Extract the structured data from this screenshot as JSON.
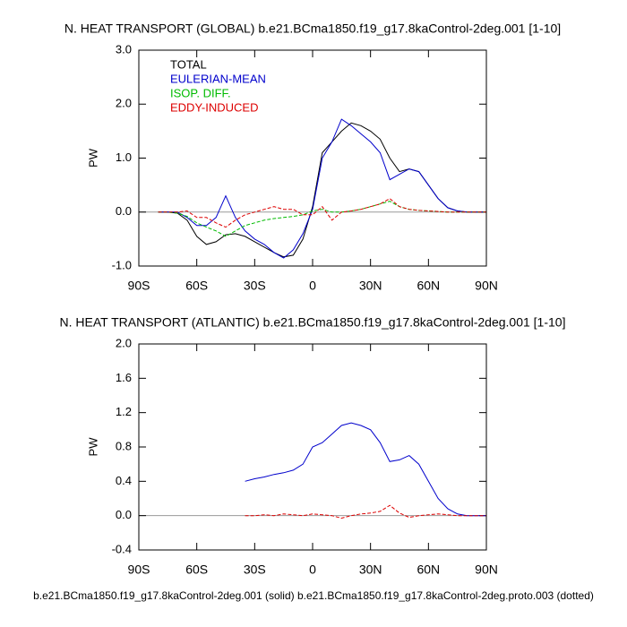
{
  "chart_data": [
    {
      "type": "line",
      "title": "N. HEAT TRANSPORT (GLOBAL) b.e21.BCma1850.f19_g17.8kaControl-2deg.001 [1-10]",
      "ylabel": "PW",
      "x": [
        -80,
        -75,
        -70,
        -65,
        -60,
        -55,
        -50,
        -45,
        -40,
        -35,
        -30,
        -25,
        -20,
        -15,
        -10,
        -5,
        0,
        5,
        10,
        15,
        20,
        25,
        30,
        35,
        40,
        45,
        50,
        55,
        60,
        65,
        70,
        75,
        80,
        85,
        90
      ],
      "series": [
        {
          "name": "TOTAL",
          "color": "#000000",
          "dash": false,
          "values": [
            0,
            0,
            -0.02,
            -0.15,
            -0.45,
            -0.6,
            -0.55,
            -0.42,
            -0.4,
            -0.45,
            -0.55,
            -0.65,
            -0.75,
            -0.83,
            -0.8,
            -0.5,
            0.1,
            1.1,
            1.3,
            1.5,
            1.65,
            1.6,
            1.5,
            1.35,
            1.0,
            0.75,
            0.8,
            0.75,
            0.5,
            0.25,
            0.08,
            0.02,
            0,
            0,
            0
          ]
        },
        {
          "name": "EULERIAN-MEAN",
          "color": "#0000cc",
          "dash": false,
          "values": [
            0,
            0,
            0,
            -0.1,
            -0.25,
            -0.25,
            -0.1,
            0.3,
            -0.1,
            -0.35,
            -0.5,
            -0.6,
            -0.75,
            -0.85,
            -0.7,
            -0.4,
            0.05,
            1.0,
            1.3,
            1.72,
            1.6,
            1.45,
            1.3,
            1.1,
            0.6,
            0.7,
            0.8,
            0.75,
            0.5,
            0.25,
            0.08,
            0.02,
            0,
            0,
            0
          ]
        },
        {
          "name": "ISOP. DIFF.",
          "color": "#00bb00",
          "dash": true,
          "values": [
            0,
            0,
            -0.02,
            -0.08,
            -0.2,
            -0.28,
            -0.35,
            -0.45,
            -0.35,
            -0.25,
            -0.2,
            -0.15,
            -0.12,
            -0.1,
            -0.08,
            -0.05,
            0.02,
            0.05,
            0,
            0,
            0.02,
            0.05,
            0.1,
            0.15,
            0.2,
            0.1,
            0.05,
            0.03,
            0.02,
            0.01,
            0,
            0,
            0,
            0,
            0
          ]
        },
        {
          "name": "EDDY-INDUCED",
          "color": "#dd0000",
          "dash": true,
          "values": [
            0,
            0,
            0,
            0.02,
            -0.1,
            -0.1,
            -0.2,
            -0.28,
            -0.15,
            -0.05,
            0,
            0.05,
            0.1,
            0.05,
            0.05,
            -0.05,
            -0.05,
            0.1,
            -0.15,
            0,
            0.02,
            0.05,
            0.1,
            0.15,
            0.25,
            0.1,
            0.05,
            0.03,
            0.02,
            0.01,
            0,
            0,
            0,
            0,
            0
          ]
        }
      ],
      "xlim": [
        -90,
        90
      ],
      "xticks": [
        {
          "value": -90,
          "label": "90S"
        },
        {
          "value": -60,
          "label": "60S"
        },
        {
          "value": -30,
          "label": "30S"
        },
        0,
        {
          "value": 30,
          "label": "30N"
        },
        {
          "value": 60,
          "label": "60N"
        },
        {
          "value": 90,
          "label": "90N"
        }
      ],
      "ylim": [
        -1,
        3
      ],
      "yticks": [
        {
          "value": -1,
          "label": "-1.0"
        },
        {
          "value": 0,
          "label": "0.0"
        },
        {
          "value": 1,
          "label": "1.0"
        },
        {
          "value": 2,
          "label": "2.0"
        },
        {
          "value": 3,
          "label": "3.0"
        }
      ],
      "zero_line": true,
      "legend": "upper left"
    },
    {
      "type": "line",
      "title": "N. HEAT TRANSPORT (ATLANTIC) b.e21.BCma1850.f19_g17.8kaControl-2deg.001 [1-10]",
      "ylabel": "PW",
      "x": [
        -35,
        -30,
        -25,
        -20,
        -15,
        -10,
        -5,
        0,
        5,
        10,
        15,
        20,
        25,
        30,
        35,
        40,
        45,
        50,
        55,
        60,
        65,
        70,
        75,
        80,
        85,
        90
      ],
      "series": [
        {
          "color": "#0000cc",
          "dash": false,
          "values": [
            0.4,
            0.43,
            0.45,
            0.48,
            0.5,
            0.53,
            0.6,
            0.8,
            0.85,
            0.95,
            1.05,
            1.08,
            1.05,
            1.0,
            0.85,
            0.63,
            0.65,
            0.7,
            0.6,
            0.4,
            0.2,
            0.08,
            0.02,
            0,
            0,
            0
          ]
        },
        {
          "color": "#dd0000",
          "dash": true,
          "values": [
            0,
            0,
            0.01,
            0,
            0.02,
            0.01,
            0,
            0.02,
            0.01,
            0,
            -0.03,
            0,
            0.02,
            0.03,
            0.05,
            0.12,
            0.03,
            -0.02,
            0,
            0.01,
            0.02,
            0.01,
            0,
            0,
            0,
            0
          ]
        }
      ],
      "xlim": [
        -90,
        90
      ],
      "xticks": [
        {
          "value": -90,
          "label": "90S"
        },
        {
          "value": -60,
          "label": "60S"
        },
        {
          "value": -30,
          "label": "30S"
        },
        0,
        {
          "value": 30,
          "label": "30N"
        },
        {
          "value": 60,
          "label": "60N"
        },
        {
          "value": 90,
          "label": "90N"
        }
      ],
      "ylim": [
        -0.4,
        2.0
      ],
      "yticks": [
        {
          "value": -0.4,
          "label": "-0.4"
        },
        {
          "value": 0,
          "label": "0.0"
        },
        {
          "value": 0.4,
          "label": "0.4"
        },
        {
          "value": 0.8,
          "label": "0.8"
        },
        {
          "value": 1.2,
          "label": "1.2"
        },
        {
          "value": 1.6,
          "label": "1.6"
        },
        {
          "value": 2.0,
          "label": "2.0"
        }
      ],
      "zero_line": true
    }
  ],
  "footer": "b.e21.BCma1850.f19_g17.8kaControl-2deg.001 (solid) b.e21.BCma1850.f19_g17.8kaControl-2deg.proto.003 (dotted)"
}
